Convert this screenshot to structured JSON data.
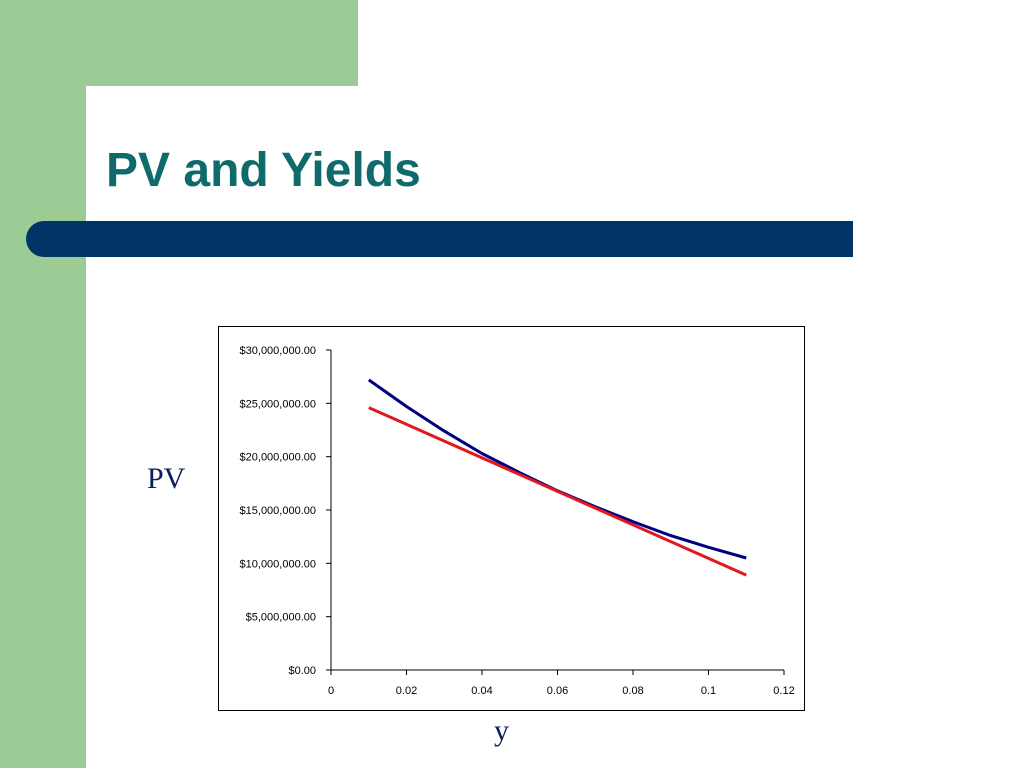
{
  "slide": {
    "title": "PV and Yields"
  },
  "colors": {
    "sidebar_green": "#9ccc96",
    "title_teal": "#0f6b6b",
    "bar_navy": "#003366",
    "label_navy": "#0a1f5c"
  },
  "chart_data": {
    "type": "line",
    "title": "",
    "xlabel": "y",
    "ylabel": "PV",
    "xlim": [
      0,
      0.12
    ],
    "ylim": [
      0,
      30000000
    ],
    "x_ticks": [
      0,
      0.02,
      0.04,
      0.06,
      0.08,
      0.1,
      0.12
    ],
    "x_tick_labels": [
      "0",
      "0.02",
      "0.04",
      "0.06",
      "0.08",
      "0.1",
      "0.12"
    ],
    "y_ticks": [
      0,
      5000000,
      10000000,
      15000000,
      20000000,
      25000000,
      30000000
    ],
    "y_tick_labels": [
      "$0.00",
      "$5,000,000.00",
      "$10,000,000.00",
      "$15,000,000.00",
      "$20,000,000.00",
      "$25,000,000.00",
      "$30,000,000.00"
    ],
    "grid": false,
    "legend": "none",
    "series": [
      {
        "color": "#000080",
        "x": [
          0.01,
          0.02,
          0.03,
          0.04,
          0.05,
          0.06,
          0.07,
          0.08,
          0.09,
          0.1,
          0.11
        ],
        "values": [
          27200000,
          24700000,
          22400000,
          20300000,
          18500000,
          16800000,
          15300000,
          13900000,
          12600000,
          11500000,
          10500000
        ]
      },
      {
        "color": "#e0191e",
        "x": [
          0.01,
          0.11
        ],
        "values": [
          24600000,
          8900000
        ]
      }
    ]
  }
}
